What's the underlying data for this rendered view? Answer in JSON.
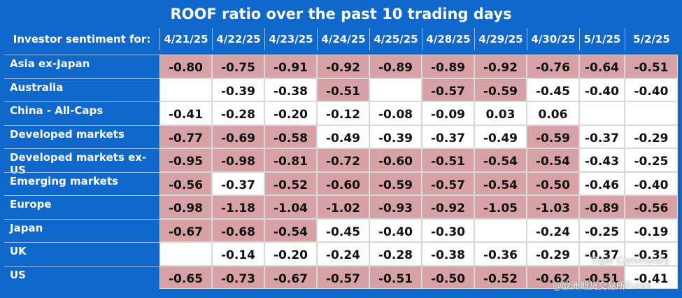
{
  "title": "ROOF ratio over the past 10 trading days",
  "header": {
    "label": "Investor sentiment for:",
    "columns": [
      "4/21/25",
      "4/22/25",
      "4/23/25",
      "4/24/25",
      "4/25/25",
      "4/28/25",
      "4/29/25",
      "4/30/25",
      "5/1/25",
      "5/2/25"
    ]
  },
  "rows": [
    {
      "label": "Asia ex-Japan",
      "cells": [
        "-0.80",
        "-0.75",
        "-0.91",
        "-0.92",
        "-0.89",
        "-0.89",
        "-0.92",
        "-0.76",
        "-0.64",
        "-0.51"
      ],
      "highlight": [
        true,
        true,
        true,
        true,
        true,
        true,
        true,
        true,
        true,
        true
      ]
    },
    {
      "label": "Australia",
      "cells": [
        null,
        "-0.39",
        "-0.38",
        "-0.51",
        null,
        "-0.57",
        "-0.59",
        "-0.45",
        "-0.40",
        "-0.40"
      ],
      "highlight": [
        false,
        false,
        false,
        true,
        false,
        true,
        true,
        false,
        false,
        false
      ]
    },
    {
      "label": "China - All-Caps",
      "cells": [
        "-0.41",
        "-0.28",
        "-0.20",
        "-0.12",
        "-0.08",
        "-0.09",
        "0.03",
        "0.06",
        null,
        null
      ],
      "highlight": [
        false,
        false,
        false,
        false,
        false,
        false,
        false,
        false,
        false,
        false
      ]
    },
    {
      "label": "Developed markets",
      "cells": [
        "-0.77",
        "-0.69",
        "-0.58",
        "-0.49",
        "-0.39",
        "-0.37",
        "-0.49",
        "-0.59",
        "-0.37",
        "-0.29"
      ],
      "highlight": [
        true,
        true,
        true,
        false,
        false,
        false,
        false,
        true,
        false,
        false
      ]
    },
    {
      "label": "Developed markets ex-US",
      "cells": [
        "-0.95",
        "-0.98",
        "-0.81",
        "-0.72",
        "-0.60",
        "-0.51",
        "-0.54",
        "-0.54",
        "-0.43",
        "-0.25"
      ],
      "highlight": [
        true,
        true,
        true,
        true,
        true,
        true,
        true,
        true,
        false,
        false
      ]
    },
    {
      "label": "Emerging markets",
      "cells": [
        "-0.56",
        "-0.37",
        "-0.52",
        "-0.60",
        "-0.59",
        "-0.57",
        "-0.54",
        "-0.50",
        "-0.46",
        "-0.40"
      ],
      "highlight": [
        true,
        false,
        true,
        true,
        true,
        true,
        true,
        true,
        false,
        false
      ]
    },
    {
      "label": "Europe",
      "cells": [
        "-0.98",
        "-1.18",
        "-1.04",
        "-1.02",
        "-0.93",
        "-0.92",
        "-1.05",
        "-1.03",
        "-0.89",
        "-0.56"
      ],
      "highlight": [
        true,
        true,
        true,
        true,
        true,
        true,
        true,
        true,
        true,
        true
      ]
    },
    {
      "label": "Japan",
      "cells": [
        "-0.67",
        "-0.68",
        "-0.54",
        "-0.45",
        "-0.40",
        "-0.30",
        null,
        "-0.24",
        "-0.25",
        "-0.19"
      ],
      "highlight": [
        true,
        true,
        true,
        false,
        false,
        false,
        false,
        false,
        false,
        false
      ]
    },
    {
      "label": "UK",
      "cells": [
        null,
        "-0.14",
        "-0.20",
        "-0.24",
        "-0.28",
        "-0.38",
        "-0.36",
        "-0.29",
        "-0.37",
        "-0.35"
      ],
      "highlight": [
        false,
        false,
        false,
        false,
        false,
        false,
        false,
        false,
        false,
        false
      ]
    },
    {
      "label": "US",
      "cells": [
        "-0.65",
        "-0.73",
        "-0.67",
        "-0.57",
        "-0.51",
        "-0.50",
        "-0.52",
        "-0.62",
        "-0.51",
        "-0.41"
      ],
      "highlight": [
        true,
        true,
        true,
        true,
        true,
        true,
        true,
        true,
        true,
        false
      ]
    }
  ],
  "watermark": [
    "Tiger Community",
    "@欧洲期货交易所Eurex"
  ]
}
